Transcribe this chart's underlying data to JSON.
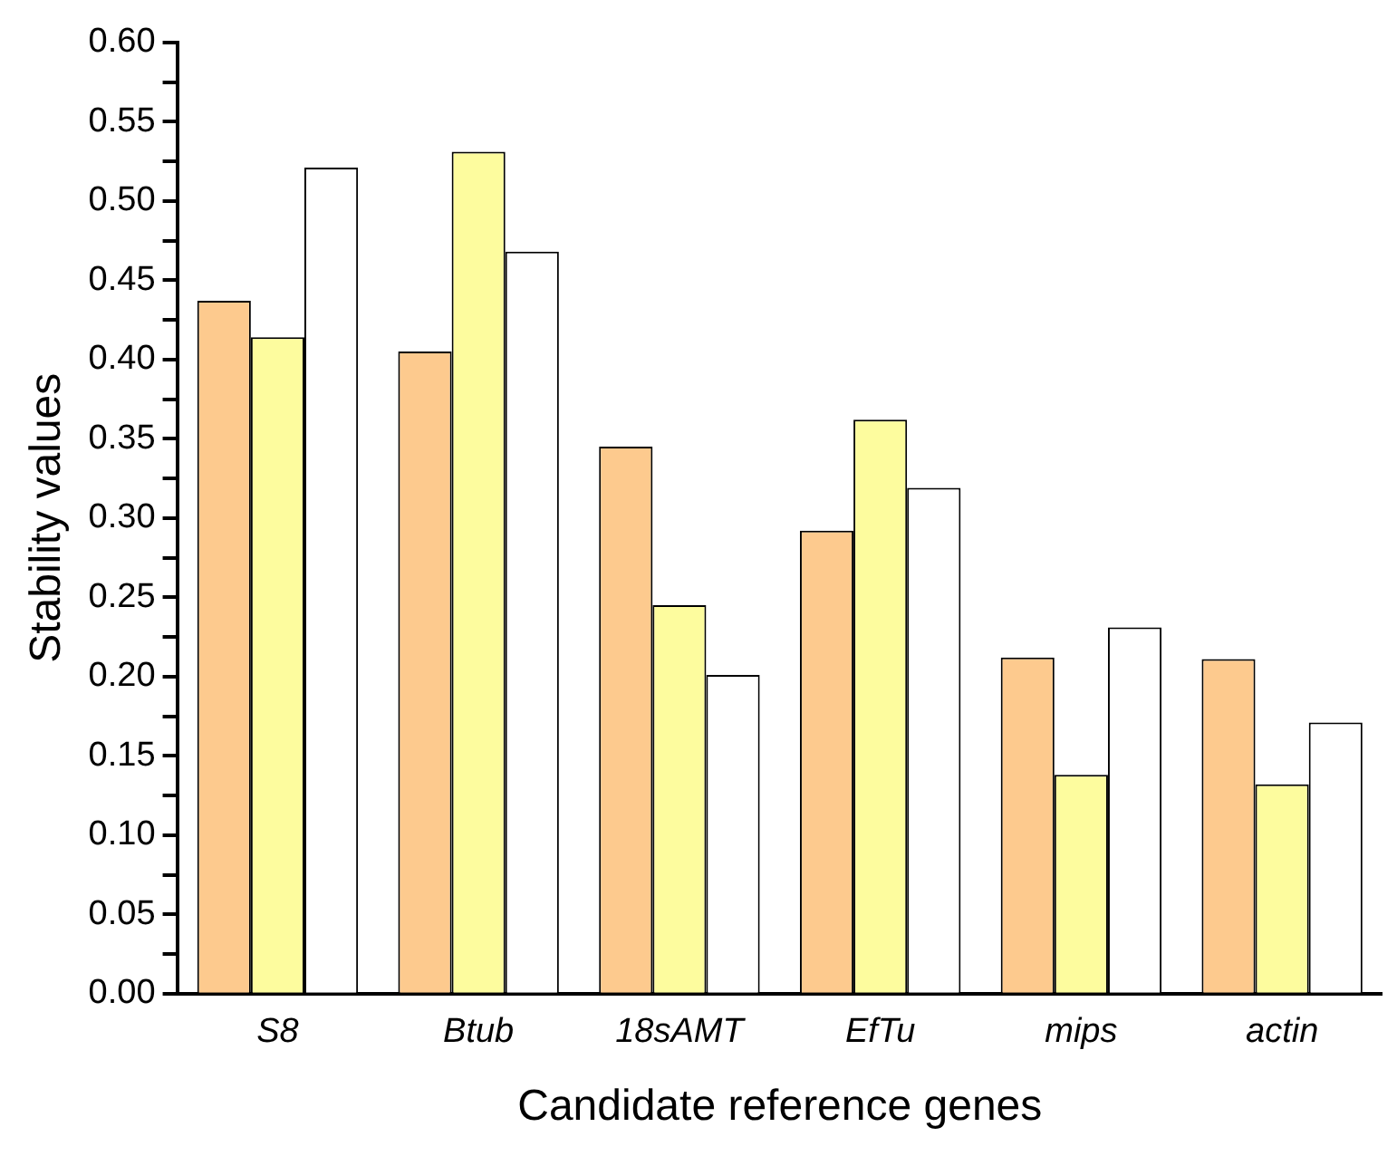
{
  "chart_data": {
    "type": "bar",
    "xlabel": "Candidate reference genes",
    "ylabel": "Stability values",
    "categories": [
      "S8",
      "Btub",
      "18sAMT",
      "EfTu",
      "mips",
      "actin"
    ],
    "series": [
      {
        "color": "#fdca8e",
        "values": [
          0.437,
          0.405,
          0.345,
          0.292,
          0.212,
          0.211
        ]
      },
      {
        "color": "#fdfc9e",
        "values": [
          0.414,
          0.531,
          0.245,
          0.362,
          0.138,
          0.132
        ]
      },
      {
        "color": "#ffffff",
        "values": [
          0.521,
          0.468,
          0.201,
          0.319,
          0.231,
          0.171
        ]
      }
    ],
    "ylim": [
      0,
      0.6
    ],
    "yticks": [
      {
        "value": 0,
        "label": "0.00"
      },
      {
        "value": 0.025,
        "label": null
      },
      0.05,
      {
        "value": 0.075,
        "label": null
      },
      {
        "value": 0.1,
        "label": "0.10"
      },
      {
        "value": 0.125,
        "label": null
      },
      0.15,
      {
        "value": 0.175,
        "label": null
      },
      {
        "value": 0.2,
        "label": "0.20"
      },
      {
        "value": 0.225,
        "label": null
      },
      0.25,
      {
        "value": 0.275,
        "label": null
      },
      {
        "value": 0.3,
        "label": "0.30"
      },
      {
        "value": 0.325,
        "label": null
      },
      0.35,
      {
        "value": 0.375,
        "label": null
      },
      {
        "value": 0.4,
        "label": "0.40"
      },
      {
        "value": 0.425,
        "label": null
      },
      0.45,
      {
        "value": 0.475,
        "label": null
      },
      {
        "value": 0.5,
        "label": "0.50"
      },
      {
        "value": 0.525,
        "label": null
      },
      0.55,
      {
        "value": 0.575,
        "label": null
      },
      {
        "value": 0.6,
        "label": "0.60"
      }
    ],
    "grid": false,
    "legend": false
  }
}
